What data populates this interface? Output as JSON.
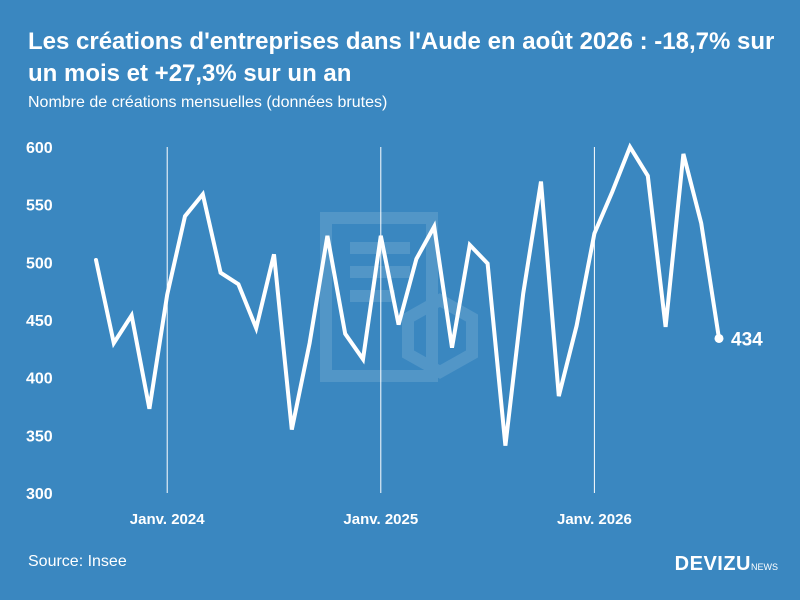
{
  "header": {
    "title": "Les créations d'entreprises dans l'Aude en août 2026 : -18,7% sur un mois et +27,3% sur un an",
    "subtitle": "Nombre de créations mensuelles (données brutes)"
  },
  "footer": {
    "source": "Source: Insee",
    "brand": "DEVIZU",
    "brand_sub": "NEWS"
  },
  "colors": {
    "background": "#3a87c0",
    "line": "#ffffff"
  },
  "chart_data": {
    "type": "line",
    "title": "Les créations d'entreprises dans l'Aude en août 2026 : -18,7% sur un mois et +27,3% sur un an",
    "subtitle": "Nombre de créations mensuelles (données brutes)",
    "x": [
      "2023-09",
      "2023-10",
      "2023-11",
      "2023-12",
      "2024-01",
      "2024-02",
      "2024-03",
      "2024-04",
      "2024-05",
      "2024-06",
      "2024-07",
      "2024-08",
      "2024-09",
      "2024-10",
      "2024-11",
      "2024-12",
      "2025-01",
      "2025-02",
      "2025-03",
      "2025-04",
      "2025-05",
      "2025-06",
      "2025-07",
      "2025-08",
      "2025-09",
      "2025-10",
      "2025-11",
      "2025-12",
      "2026-01",
      "2026-02",
      "2026-03",
      "2026-04",
      "2026-05",
      "2026-06",
      "2026-07",
      "2026-08"
    ],
    "series": [
      {
        "values": [
          502,
          430,
          454,
          373,
          472,
          540,
          559,
          491,
          481,
          443,
          507,
          355,
          430,
          523,
          438,
          416,
          523,
          446,
          503,
          531,
          426,
          515,
          499,
          341,
          473,
          570,
          384,
          445,
          525,
          561,
          600,
          575,
          444,
          594,
          534,
          434
        ]
      }
    ],
    "ylim": [
      300,
      600
    ],
    "yticks": [
      300,
      350,
      400,
      450,
      500,
      550,
      600
    ],
    "xtick_labels": [
      {
        "x": "2024-01",
        "label": "Janv. 2024"
      },
      {
        "x": "2025-01",
        "label": "Janv. 2025"
      },
      {
        "x": "2026-01",
        "label": "Janv. 2026"
      }
    ],
    "last_value_label": "434",
    "grid": "vertical lines at January",
    "legend": "none"
  }
}
